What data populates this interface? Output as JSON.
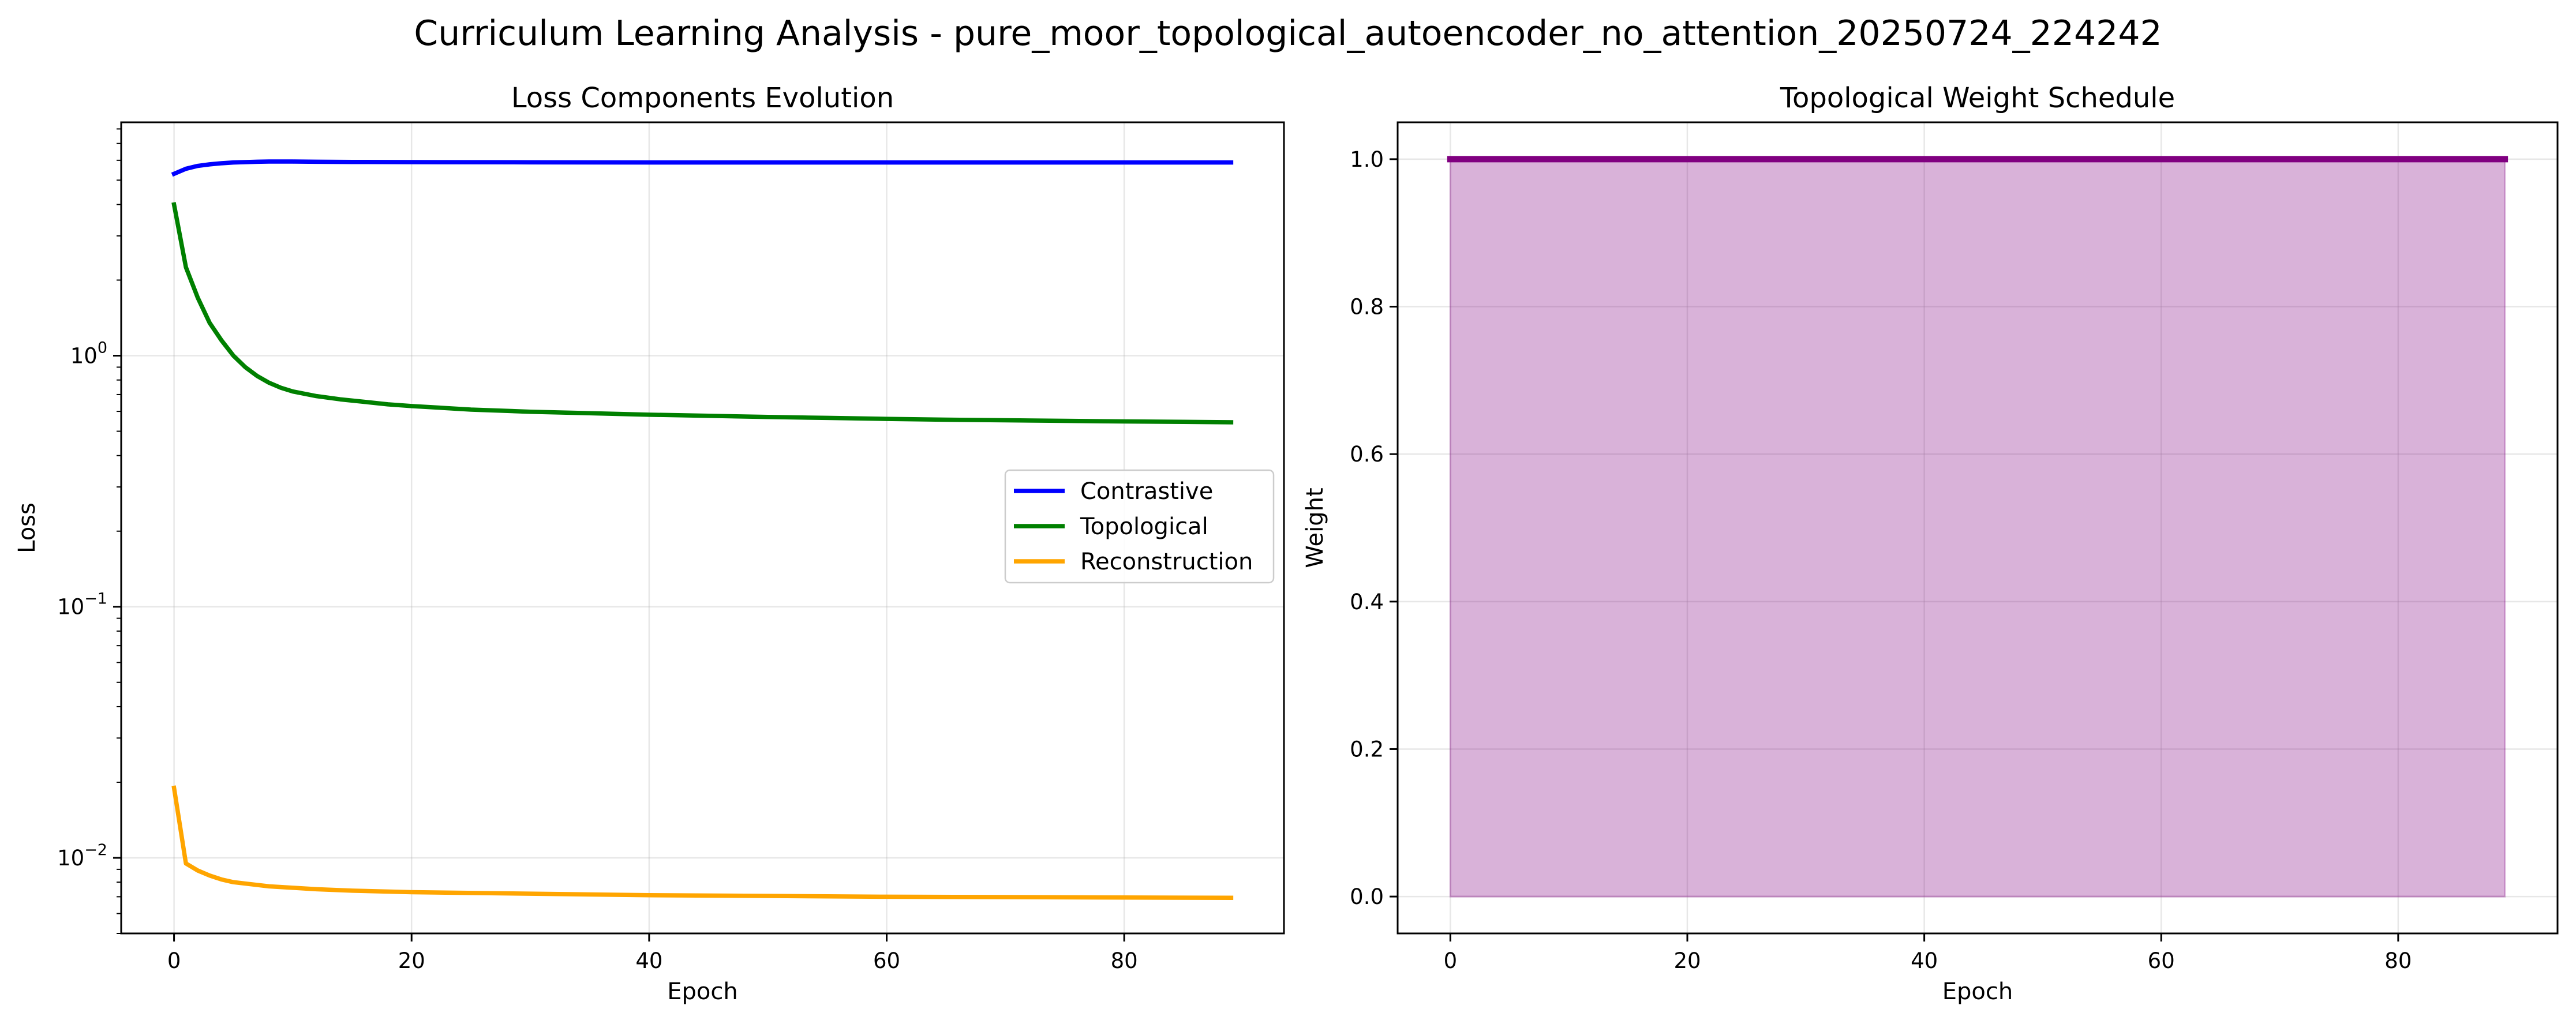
{
  "figure": {
    "title": "Curriculum Learning Analysis - pure_moor_topological_autoencoder_no_attention_20250724_224242"
  },
  "chart_data": [
    {
      "type": "line",
      "title": "Loss Components Evolution",
      "xlabel": "Epoch",
      "ylabel": "Loss",
      "yscale": "log",
      "xlim": [
        -4.45,
        93.45
      ],
      "ylim": [
        0.005,
        8.5
      ],
      "xticks": [
        0,
        20,
        40,
        60,
        80
      ],
      "yticks": [
        {
          "value": 1,
          "base": "10",
          "exp": "0"
        },
        {
          "value": 0.1,
          "base": "10",
          "exp": "−1"
        },
        {
          "value": 0.01,
          "base": "10",
          "exp": "−2"
        }
      ],
      "grid": true,
      "legend_position": "center-right",
      "series": [
        {
          "name": "Contrastive",
          "color": "#0000ff",
          "x": [
            0,
            1,
            2,
            3,
            4,
            5,
            6,
            7,
            8,
            10,
            12,
            15,
            20,
            30,
            40,
            50,
            60,
            70,
            80,
            89
          ],
          "y": [
            5.3,
            5.55,
            5.7,
            5.78,
            5.84,
            5.88,
            5.9,
            5.92,
            5.93,
            5.93,
            5.92,
            5.91,
            5.9,
            5.89,
            5.88,
            5.88,
            5.88,
            5.88,
            5.88,
            5.88
          ]
        },
        {
          "name": "Topological",
          "color": "#008000",
          "x": [
            0,
            1,
            2,
            3,
            4,
            5,
            6,
            7,
            8,
            9,
            10,
            12,
            14,
            16,
            18,
            20,
            25,
            30,
            35,
            40,
            45,
            50,
            55,
            60,
            65,
            70,
            75,
            80,
            85,
            89
          ],
          "y": [
            4.0,
            2.25,
            1.7,
            1.35,
            1.15,
            1.0,
            0.9,
            0.83,
            0.78,
            0.745,
            0.72,
            0.69,
            0.67,
            0.655,
            0.64,
            0.63,
            0.61,
            0.598,
            0.59,
            0.582,
            0.576,
            0.57,
            0.565,
            0.56,
            0.556,
            0.553,
            0.55,
            0.547,
            0.545,
            0.543
          ]
        },
        {
          "name": "Reconstruction",
          "color": "#ffa500",
          "x": [
            0,
            1,
            2,
            3,
            4,
            5,
            6,
            8,
            10,
            12,
            15,
            20,
            30,
            40,
            50,
            60,
            70,
            80,
            89
          ],
          "y": [
            0.019,
            0.0095,
            0.0089,
            0.0085,
            0.0082,
            0.008,
            0.0079,
            0.0077,
            0.0076,
            0.0075,
            0.0074,
            0.0073,
            0.0072,
            0.0071,
            0.00705,
            0.007,
            0.00698,
            0.00695,
            0.00693
          ]
        }
      ]
    },
    {
      "type": "area",
      "title": "Topological Weight Schedule",
      "xlabel": "Epoch",
      "ylabel": "Weight",
      "yscale": "linear",
      "xlim": [
        -4.45,
        93.45
      ],
      "ylim": [
        -0.05,
        1.05
      ],
      "xticks": [
        0,
        20,
        40,
        60,
        80
      ],
      "yticks": [
        "0.0",
        "0.2",
        "0.4",
        "0.6",
        "0.8",
        "1.0"
      ],
      "grid": true,
      "series": [
        {
          "color": "#800080",
          "fill_color": "#800080",
          "fill_alpha": 0.3,
          "x": [
            0,
            89
          ],
          "y": [
            1.0,
            1.0
          ]
        }
      ]
    }
  ]
}
